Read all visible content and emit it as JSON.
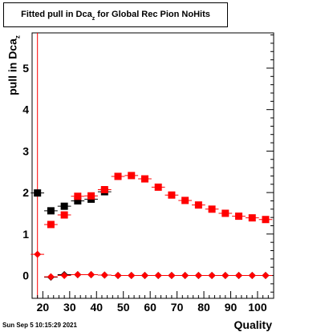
{
  "chart_data": {
    "type": "scatter",
    "title_main": "Fitted pull in Dca",
    "title_sub": "z",
    "title_rest": " for Global Rec Pion NoHits",
    "ylabel_main": "pull in Dca",
    "ylabel_sub": "z",
    "xlabel": "Quality",
    "xlim": [
      16,
      106
    ],
    "ylim": [
      -0.55,
      5.85
    ],
    "xticks": [
      20,
      30,
      40,
      50,
      60,
      70,
      80,
      90,
      100
    ],
    "xtick_labels": [
      "20",
      "30",
      "40",
      "50",
      "60",
      "70",
      "80",
      "90",
      "100"
    ],
    "yticks": [
      0,
      1,
      2,
      3,
      4,
      5
    ],
    "ytick_labels": [
      "0",
      "1",
      "2",
      "3",
      "4",
      "5"
    ],
    "reference_line_x": 18,
    "grid": false,
    "series": [
      {
        "color": "#000000",
        "marker": "square",
        "x": [
          18,
          23,
          28,
          33,
          38,
          43
        ],
        "y": [
          1.99,
          1.56,
          1.67,
          1.8,
          1.84,
          2.02
        ],
        "xerr": 2.5
      },
      {
        "color": "#ff0000",
        "marker": "square",
        "x": [
          23,
          28,
          33,
          38,
          43,
          48,
          53,
          58,
          63,
          68,
          73,
          78,
          83,
          88,
          93,
          98,
          103
        ],
        "y": [
          1.23,
          1.46,
          1.91,
          1.92,
          2.07,
          2.39,
          2.41,
          2.33,
          2.13,
          1.94,
          1.81,
          1.7,
          1.6,
          1.5,
          1.43,
          1.39,
          1.35
        ],
        "xerr": 2.5
      },
      {
        "color": "#000000",
        "marker": "diamond",
        "x": [
          23,
          28,
          33,
          38,
          43,
          48,
          53,
          58,
          63,
          68,
          73,
          78,
          83,
          88,
          93,
          98,
          103
        ],
        "y": [
          -0.04,
          0.02,
          0.02,
          0.02,
          0.01,
          0.0,
          0.0,
          0.0,
          0.0,
          0.0,
          0.0,
          0.0,
          0.0,
          0.0,
          0.0,
          0.0,
          0.0
        ],
        "xerr": 2.5
      },
      {
        "color": "#ff0000",
        "marker": "diamond",
        "x": [
          18,
          23,
          28,
          33,
          38,
          43,
          48,
          53,
          58,
          63,
          68,
          73,
          78,
          83,
          88,
          93,
          98,
          103
        ],
        "y": [
          0.51,
          -0.03,
          0.0,
          0.02,
          0.02,
          0.01,
          0.0,
          0.0,
          0.0,
          0.0,
          0.0,
          0.0,
          0.0,
          0.0,
          0.0,
          0.0,
          0.0,
          0.0
        ],
        "xerr": 2.5
      }
    ]
  },
  "footer": {
    "timestamp": "Sun Sep  5 10:15:29 2021"
  }
}
